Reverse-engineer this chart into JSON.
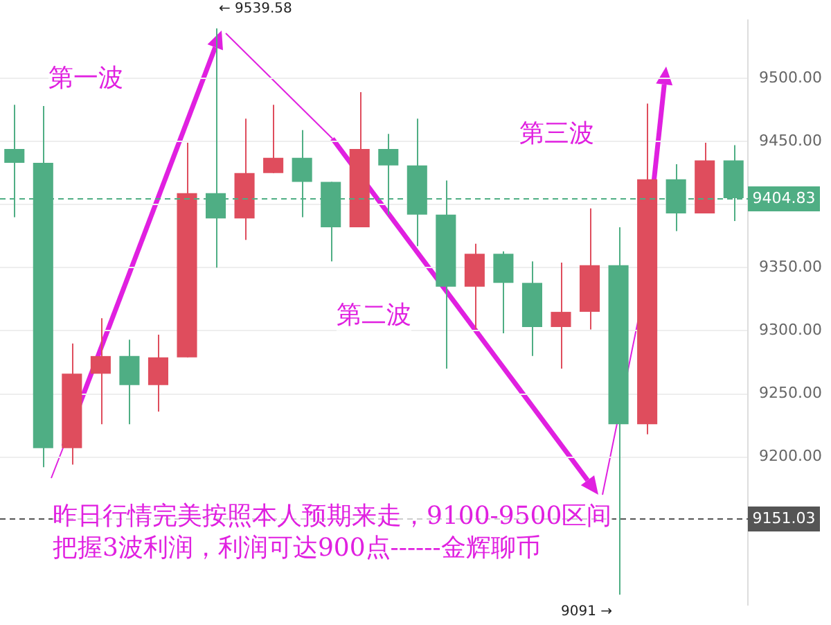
{
  "chart_data": {
    "type": "candlestick",
    "categories": [
      null,
      null,
      null,
      null,
      null,
      null,
      null,
      null,
      null,
      null,
      null,
      null,
      null,
      null,
      null,
      null,
      null,
      null,
      null,
      null,
      null,
      null,
      null,
      null,
      null,
      null
    ],
    "ohlc": [
      [
        9444,
        9479,
        9390,
        9433
      ],
      [
        9433,
        9478,
        9192,
        9207
      ],
      [
        9207,
        9290,
        9194,
        9266
      ],
      [
        9266,
        9310,
        9226,
        9280
      ],
      [
        9280,
        9293,
        9226,
        9257
      ],
      [
        9257,
        9297,
        9236,
        9279
      ],
      [
        9279,
        9449,
        9279,
        9409
      ],
      [
        9409,
        9539.58,
        9350,
        9389
      ],
      [
        9389,
        9468,
        9372,
        9425
      ],
      [
        9425,
        9479,
        9425,
        9437
      ],
      [
        9437,
        9459,
        9390,
        9418
      ],
      [
        9418,
        9418,
        9355,
        9382
      ],
      [
        9382,
        9489,
        9382,
        9444
      ],
      [
        9444,
        9456,
        9392,
        9431
      ],
      [
        9431,
        9468,
        9367,
        9392
      ],
      [
        9392,
        9419,
        9270,
        9335
      ],
      [
        9335,
        9369,
        9301,
        9361
      ],
      [
        9361,
        9363,
        9298,
        9338
      ],
      [
        9338,
        9355,
        9280,
        9303
      ],
      [
        9303,
        9354,
        9270,
        9315
      ],
      [
        9315,
        9397,
        9301,
        9352
      ],
      [
        9352,
        9382,
        9091,
        9226
      ],
      [
        9226,
        9480,
        9218,
        9420
      ],
      [
        9420,
        9432,
        9379,
        9393
      ],
      [
        9393,
        9449,
        9393,
        9435
      ],
      [
        9435,
        9447,
        9387,
        9405
      ]
    ],
    "colors": [
      "#4fae84",
      "#4fae84",
      "#df4d5d",
      "#df4d5d",
      "#4fae84",
      "#df4d5d",
      "#df4d5d",
      "#4fae84",
      "#df4d5d",
      "#df4d5d",
      "#4fae84",
      "#4fae84",
      "#df4d5d",
      "#4fae84",
      "#4fae84",
      "#4fae84",
      "#df4d5d",
      "#4fae84",
      "#4fae84",
      "#df4d5d",
      "#df4d5d",
      "#4fae84",
      "#df4d5d",
      "#4fae84",
      "#df4d5d",
      "#4fae84"
    ],
    "ylim": [
      9083,
      9546
    ],
    "yticks": [
      {
        "value": 9200,
        "label": "9200.00"
      },
      {
        "value": 9250,
        "label": "9250.00"
      },
      {
        "value": 9300,
        "label": "9300.00"
      },
      {
        "value": 9350,
        "label": "9350.00"
      },
      {
        "value": 9400,
        "label": null
      },
      {
        "value": 9450,
        "label": "9450.00"
      },
      {
        "value": 9500,
        "label": "9500.00"
      }
    ],
    "grid": "y",
    "ref_lines": [
      {
        "axis": "y",
        "value": 9404.83,
        "label": "9404.83",
        "color": "#4fae84",
        "line_style": "dashed"
      },
      {
        "axis": "y",
        "value": 9151.03,
        "label": "9151.03",
        "color": "#555555",
        "line_style": "dashed"
      }
    ],
    "annotations": [
      "第一波",
      "第二波",
      "第三波",
      "← 9539.58",
      "9091 →",
      "昨日行情完美按照本人预期来走，9100-9500区间",
      "把握3波利润，利润可达900点------金辉聊币"
    ]
  }
}
